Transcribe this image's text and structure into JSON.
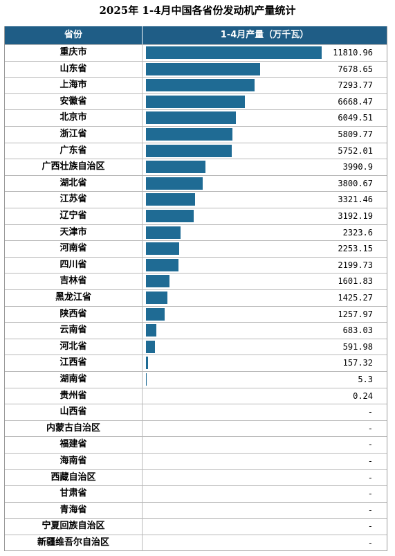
{
  "title": "2025年 1-4月中国各省份发动机产量统计",
  "header": {
    "col1": "省份",
    "col2": "1-4月产量（万千瓦）"
  },
  "colors": {
    "header_bg": "#1f5d86",
    "bar": "#1f6b94"
  },
  "chart_data": {
    "type": "table",
    "max_value": 11810.96,
    "rows": [
      {
        "name": "重庆市",
        "value": 11810.96,
        "label": "11810.96"
      },
      {
        "name": "山东省",
        "value": 7678.65,
        "label": "7678.65"
      },
      {
        "name": "上海市",
        "value": 7293.77,
        "label": "7293.77"
      },
      {
        "name": "安徽省",
        "value": 6668.47,
        "label": "6668.47"
      },
      {
        "name": "北京市",
        "value": 6049.51,
        "label": "6049.51"
      },
      {
        "name": "浙江省",
        "value": 5809.77,
        "label": "5809.77"
      },
      {
        "name": "广东省",
        "value": 5752.01,
        "label": "5752.01"
      },
      {
        "name": "广西壮族自治区",
        "value": 3990.9,
        "label": "3990.9"
      },
      {
        "name": "湖北省",
        "value": 3800.67,
        "label": "3800.67"
      },
      {
        "name": "江苏省",
        "value": 3321.46,
        "label": "3321.46"
      },
      {
        "name": "辽宁省",
        "value": 3192.19,
        "label": "3192.19"
      },
      {
        "name": "天津市",
        "value": 2323.6,
        "label": "2323.6"
      },
      {
        "name": "河南省",
        "value": 2253.15,
        "label": "2253.15"
      },
      {
        "name": "四川省",
        "value": 2199.73,
        "label": "2199.73"
      },
      {
        "name": "吉林省",
        "value": 1601.83,
        "label": "1601.83"
      },
      {
        "name": "黑龙江省",
        "value": 1425.27,
        "label": "1425.27"
      },
      {
        "name": "陕西省",
        "value": 1257.97,
        "label": "1257.97"
      },
      {
        "name": "云南省",
        "value": 683.03,
        "label": "683.03"
      },
      {
        "name": "河北省",
        "value": 591.98,
        "label": "591.98"
      },
      {
        "name": "江西省",
        "value": 157.32,
        "label": "157.32"
      },
      {
        "name": "湖南省",
        "value": 5.3,
        "label": "5.3"
      },
      {
        "name": "贵州省",
        "value": 0.24,
        "label": "0.24"
      },
      {
        "name": "山西省",
        "value": null,
        "label": "-"
      },
      {
        "name": "内蒙古自治区",
        "value": null,
        "label": "-"
      },
      {
        "name": "福建省",
        "value": null,
        "label": "-"
      },
      {
        "name": "海南省",
        "value": null,
        "label": "-"
      },
      {
        "name": "西藏自治区",
        "value": null,
        "label": "-"
      },
      {
        "name": "甘肃省",
        "value": null,
        "label": "-"
      },
      {
        "name": "青海省",
        "value": null,
        "label": "-"
      },
      {
        "name": "宁夏回族自治区",
        "value": null,
        "label": "-"
      },
      {
        "name": "新疆维吾尔自治区",
        "value": null,
        "label": "-"
      }
    ]
  }
}
